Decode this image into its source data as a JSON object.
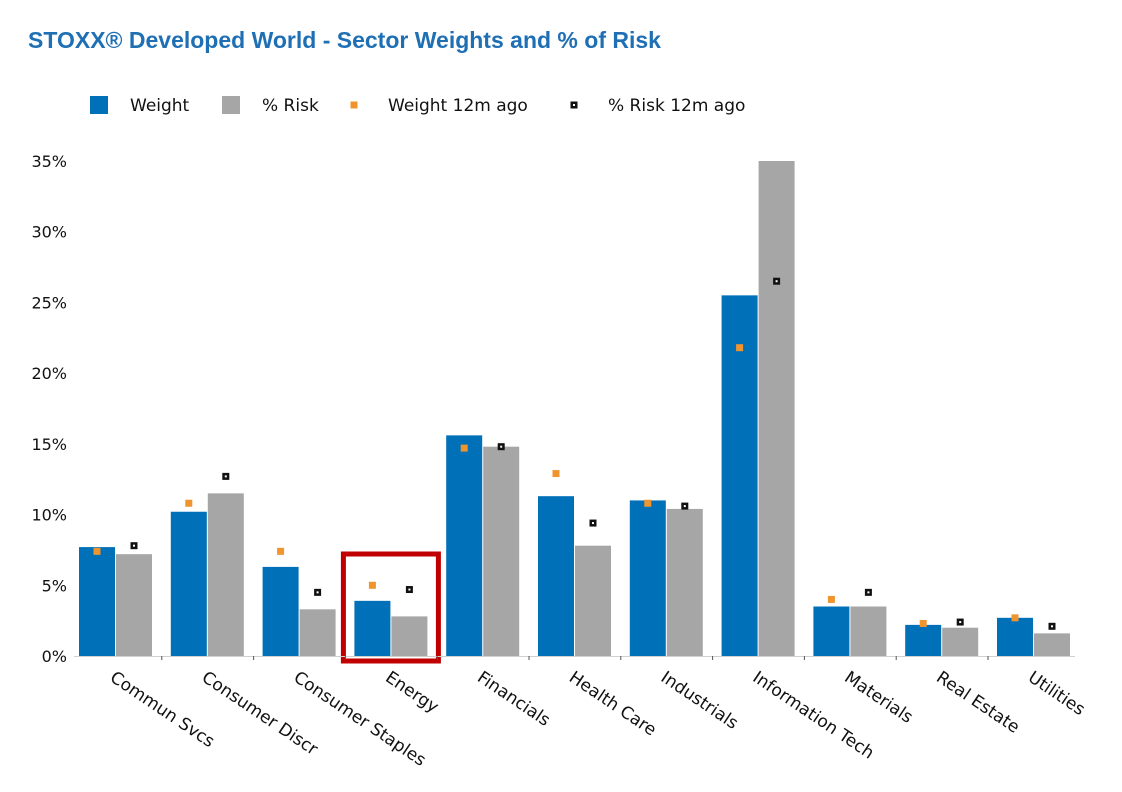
{
  "chart_data": {
    "type": "bar",
    "title": "STOXX® Developed World - Sector Weights and % of Risk",
    "categories": [
      "Commun Svcs",
      "Consumer Discr",
      "Consumer Staples",
      "Energy",
      "Financials",
      "Health Care",
      "Industrials",
      "Information Tech",
      "Materials",
      "Real Estate",
      "Utilities"
    ],
    "series": [
      {
        "name": "Weight",
        "kind": "bar",
        "color": "#0070b8",
        "values": [
          7.7,
          10.2,
          6.3,
          3.9,
          15.6,
          11.3,
          11.0,
          25.5,
          3.5,
          2.2,
          2.7
        ]
      },
      {
        "name": "% Risk",
        "kind": "bar",
        "color": "#a6a6a6",
        "values": [
          7.2,
          11.5,
          3.3,
          2.8,
          14.8,
          7.8,
          10.4,
          35.0,
          3.5,
          2.0,
          1.6
        ]
      },
      {
        "name": "Weight 12m ago",
        "kind": "marker",
        "color": "#f0952e",
        "values": [
          7.4,
          10.8,
          7.4,
          5.0,
          14.7,
          12.9,
          10.8,
          21.8,
          4.0,
          2.3,
          2.7
        ]
      },
      {
        "name": "% Risk 12m ago",
        "kind": "marker",
        "color": "#111111",
        "values": [
          7.8,
          12.7,
          4.5,
          4.7,
          14.8,
          9.4,
          10.6,
          26.5,
          4.5,
          2.4,
          2.1
        ]
      }
    ],
    "yticks": [
      "0%",
      "5%",
      "10%",
      "15%",
      "20%",
      "25%",
      "30%",
      "35%"
    ],
    "ylim": [
      0,
      35
    ],
    "legend_position": "top",
    "highlight_category": "Energy",
    "highlight_color": "#c00000",
    "grid": false
  }
}
